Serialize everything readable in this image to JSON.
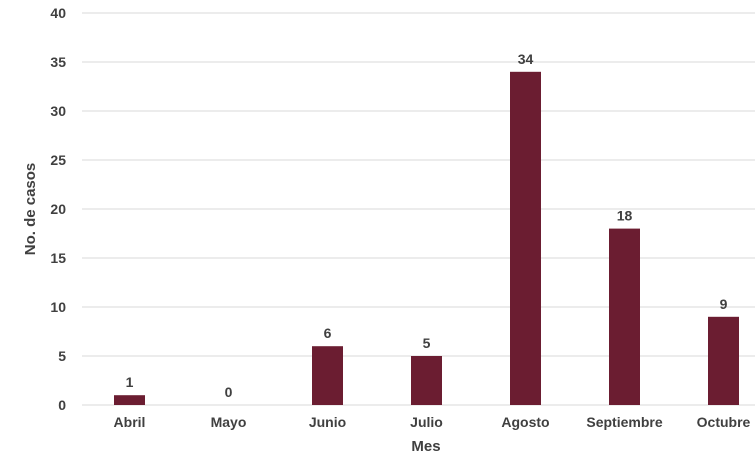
{
  "chart_data": {
    "type": "bar",
    "title": "",
    "xlabel": "Mes",
    "ylabel": "No. de casos",
    "categories": [
      "Abril",
      "Mayo",
      "Junio",
      "Julio",
      "Agosto",
      "Septiembre",
      "Octubre"
    ],
    "values": [
      1,
      0,
      6,
      5,
      34,
      18,
      9
    ],
    "ylim": [
      0,
      40
    ],
    "yticks": [
      0,
      5,
      10,
      15,
      20,
      25,
      30,
      35,
      40
    ],
    "grid": true,
    "legend": "none",
    "colors": {
      "bar": "#6b1d31",
      "grid": "#d9d9d9",
      "text": "#404040"
    }
  }
}
